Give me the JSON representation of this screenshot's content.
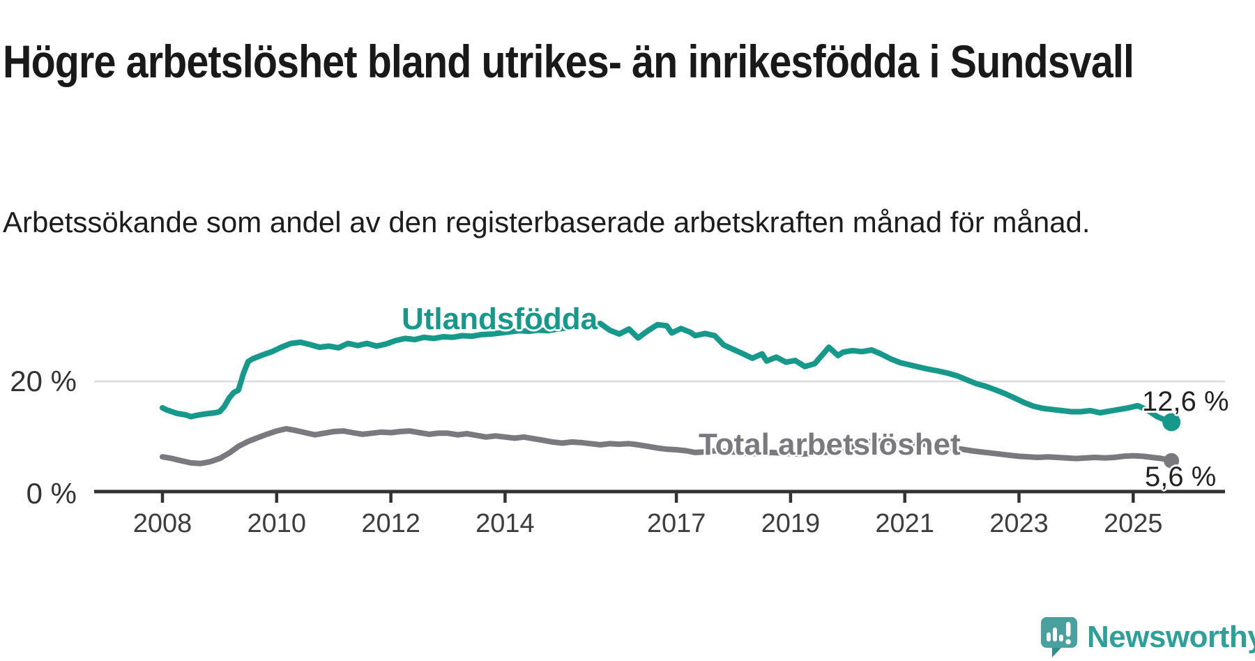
{
  "header": {
    "title": "Högre arbetslöshet bland utrikes- än inrikesfödda i Sundsvall",
    "subtitle": "Arbetssökande som andel av den registerbaserade arbetskraften månad för månad."
  },
  "chart_data": {
    "type": "line",
    "title": "Högre arbetslöshet bland utrikes- än inrikesfödda i Sundsvall",
    "subtitle": "Arbetssökande som andel av den registerbaserade arbetskraften månad för månad.",
    "unit": "%",
    "grid": "horizontal-only",
    "x_range": [
      2008,
      2026.3
    ],
    "y_axis": {
      "range": [
        0,
        32
      ],
      "ticks": [
        {
          "value": 0,
          "label": "0 %"
        },
        {
          "value": 20,
          "label": "20 %"
        }
      ]
    },
    "x_axis": {
      "ticks": [
        {
          "year": 2008,
          "label": "2008"
        },
        {
          "year": 2010,
          "label": "2010"
        },
        {
          "year": 2012,
          "label": "2012"
        },
        {
          "year": 2014,
          "label": "2014"
        },
        {
          "year": 2017,
          "label": "2017"
        },
        {
          "year": 2019,
          "label": "2019"
        },
        {
          "year": 2021,
          "label": "2021"
        },
        {
          "year": 2023,
          "label": "2023"
        },
        {
          "year": 2025,
          "label": "2025"
        }
      ]
    },
    "series": [
      {
        "name": "Utlandsfödda",
        "color": "#16998b",
        "end_label": "12,6 %",
        "end_value": 12.6,
        "points": [
          [
            2008.0,
            15.2
          ],
          [
            2008.08,
            14.8
          ],
          [
            2008.25,
            14.2
          ],
          [
            2008.42,
            13.9
          ],
          [
            2008.5,
            13.6
          ],
          [
            2008.58,
            13.8
          ],
          [
            2008.75,
            14.1
          ],
          [
            2008.92,
            14.3
          ],
          [
            2009.0,
            14.5
          ],
          [
            2009.08,
            15.4
          ],
          [
            2009.17,
            17.0
          ],
          [
            2009.25,
            18.0
          ],
          [
            2009.33,
            18.4
          ],
          [
            2009.42,
            21.5
          ],
          [
            2009.5,
            23.6
          ],
          [
            2009.58,
            24.1
          ],
          [
            2009.75,
            24.8
          ],
          [
            2009.92,
            25.4
          ],
          [
            2010.08,
            26.2
          ],
          [
            2010.25,
            26.9
          ],
          [
            2010.42,
            27.1
          ],
          [
            2010.58,
            26.7
          ],
          [
            2010.75,
            26.2
          ],
          [
            2010.92,
            26.4
          ],
          [
            2011.08,
            26.1
          ],
          [
            2011.25,
            26.9
          ],
          [
            2011.42,
            26.5
          ],
          [
            2011.58,
            26.9
          ],
          [
            2011.75,
            26.4
          ],
          [
            2011.92,
            26.8
          ],
          [
            2012.08,
            27.4
          ],
          [
            2012.25,
            27.8
          ],
          [
            2012.42,
            27.6
          ],
          [
            2012.58,
            28.0
          ],
          [
            2012.75,
            27.8
          ],
          [
            2012.92,
            28.1
          ],
          [
            2013.08,
            28.0
          ],
          [
            2013.25,
            28.3
          ],
          [
            2013.42,
            28.2
          ],
          [
            2013.58,
            28.5
          ],
          [
            2013.75,
            28.6
          ],
          [
            2013.92,
            28.8
          ],
          [
            2014.08,
            29.0
          ],
          [
            2014.25,
            29.2
          ],
          [
            2014.42,
            29.1
          ],
          [
            2014.58,
            29.3
          ],
          [
            2014.75,
            29.2
          ],
          [
            2014.92,
            29.5
          ],
          [
            2015.08,
            29.7
          ],
          [
            2015.25,
            29.9
          ],
          [
            2015.42,
            30.1
          ],
          [
            2015.58,
            30.3
          ],
          [
            2015.67,
            30.5
          ],
          [
            2015.83,
            29.3
          ],
          [
            2016.0,
            28.6
          ],
          [
            2016.17,
            29.5
          ],
          [
            2016.33,
            27.9
          ],
          [
            2016.5,
            29.2
          ],
          [
            2016.67,
            30.3
          ],
          [
            2016.83,
            30.1
          ],
          [
            2016.92,
            28.8
          ],
          [
            2017.08,
            29.6
          ],
          [
            2017.25,
            28.9
          ],
          [
            2017.33,
            28.3
          ],
          [
            2017.5,
            28.7
          ],
          [
            2017.67,
            28.3
          ],
          [
            2017.83,
            26.6
          ],
          [
            2018.0,
            25.8
          ],
          [
            2018.17,
            25.0
          ],
          [
            2018.33,
            24.2
          ],
          [
            2018.5,
            25.0
          ],
          [
            2018.58,
            23.7
          ],
          [
            2018.75,
            24.4
          ],
          [
            2018.92,
            23.5
          ],
          [
            2019.08,
            23.8
          ],
          [
            2019.25,
            22.7
          ],
          [
            2019.42,
            23.2
          ],
          [
            2019.58,
            25.1
          ],
          [
            2019.67,
            26.2
          ],
          [
            2019.83,
            24.7
          ],
          [
            2019.92,
            25.3
          ],
          [
            2020.08,
            25.6
          ],
          [
            2020.25,
            25.4
          ],
          [
            2020.42,
            25.7
          ],
          [
            2020.58,
            25.0
          ],
          [
            2020.75,
            24.1
          ],
          [
            2020.92,
            23.4
          ],
          [
            2021.08,
            23.0
          ],
          [
            2021.25,
            22.6
          ],
          [
            2021.42,
            22.2
          ],
          [
            2021.58,
            21.9
          ],
          [
            2021.75,
            21.5
          ],
          [
            2021.92,
            21.0
          ],
          [
            2022.08,
            20.3
          ],
          [
            2022.25,
            19.6
          ],
          [
            2022.42,
            19.1
          ],
          [
            2022.58,
            18.5
          ],
          [
            2022.75,
            17.8
          ],
          [
            2022.92,
            17.0
          ],
          [
            2023.08,
            16.2
          ],
          [
            2023.25,
            15.5
          ],
          [
            2023.42,
            15.1
          ],
          [
            2023.58,
            14.9
          ],
          [
            2023.75,
            14.7
          ],
          [
            2023.92,
            14.5
          ],
          [
            2024.08,
            14.5
          ],
          [
            2024.25,
            14.7
          ],
          [
            2024.42,
            14.3
          ],
          [
            2024.58,
            14.6
          ],
          [
            2024.75,
            14.9
          ],
          [
            2024.92,
            15.2
          ],
          [
            2025.08,
            15.6
          ],
          [
            2025.25,
            14.8
          ],
          [
            2025.42,
            13.6
          ],
          [
            2025.58,
            12.9
          ],
          [
            2025.67,
            12.6
          ]
        ]
      },
      {
        "name": "Total arbetslöshet",
        "color": "#7b7980",
        "end_label": "5,6 %",
        "end_value": 5.6,
        "points": [
          [
            2008.0,
            6.3
          ],
          [
            2008.17,
            6.0
          ],
          [
            2008.33,
            5.6
          ],
          [
            2008.5,
            5.2
          ],
          [
            2008.67,
            5.1
          ],
          [
            2008.83,
            5.4
          ],
          [
            2009.0,
            6.0
          ],
          [
            2009.17,
            7.0
          ],
          [
            2009.33,
            8.2
          ],
          [
            2009.5,
            9.1
          ],
          [
            2009.67,
            9.8
          ],
          [
            2009.83,
            10.4
          ],
          [
            2010.0,
            11.0
          ],
          [
            2010.17,
            11.4
          ],
          [
            2010.33,
            11.1
          ],
          [
            2010.5,
            10.7
          ],
          [
            2010.67,
            10.3
          ],
          [
            2010.83,
            10.6
          ],
          [
            2011.0,
            10.9
          ],
          [
            2011.17,
            11.0
          ],
          [
            2011.33,
            10.7
          ],
          [
            2011.5,
            10.4
          ],
          [
            2011.67,
            10.6
          ],
          [
            2011.83,
            10.8
          ],
          [
            2012.0,
            10.7
          ],
          [
            2012.17,
            10.9
          ],
          [
            2012.33,
            11.0
          ],
          [
            2012.5,
            10.7
          ],
          [
            2012.67,
            10.4
          ],
          [
            2012.83,
            10.6
          ],
          [
            2013.0,
            10.6
          ],
          [
            2013.17,
            10.3
          ],
          [
            2013.33,
            10.5
          ],
          [
            2013.5,
            10.2
          ],
          [
            2013.67,
            9.9
          ],
          [
            2013.83,
            10.1
          ],
          [
            2014.0,
            9.9
          ],
          [
            2014.17,
            9.7
          ],
          [
            2014.33,
            9.9
          ],
          [
            2014.5,
            9.6
          ],
          [
            2014.67,
            9.3
          ],
          [
            2014.83,
            9.0
          ],
          [
            2015.0,
            8.8
          ],
          [
            2015.17,
            9.0
          ],
          [
            2015.33,
            8.9
          ],
          [
            2015.5,
            8.7
          ],
          [
            2015.67,
            8.5
          ],
          [
            2015.83,
            8.7
          ],
          [
            2016.0,
            8.6
          ],
          [
            2016.17,
            8.7
          ],
          [
            2016.33,
            8.5
          ],
          [
            2016.5,
            8.2
          ],
          [
            2016.67,
            7.9
          ],
          [
            2016.83,
            7.7
          ],
          [
            2017.0,
            7.6
          ],
          [
            2017.17,
            7.4
          ],
          [
            2017.33,
            7.1
          ],
          [
            2017.5,
            7.2
          ],
          [
            2017.67,
            7.4
          ],
          [
            2017.83,
            7.3
          ],
          [
            2018.0,
            7.2
          ],
          [
            2018.17,
            7.0
          ],
          [
            2018.33,
            6.9
          ],
          [
            2018.5,
            7.0
          ],
          [
            2018.67,
            7.1
          ],
          [
            2018.83,
            7.0
          ],
          [
            2019.0,
            6.9
          ],
          [
            2019.17,
            6.8
          ],
          [
            2019.33,
            6.9
          ],
          [
            2019.5,
            7.0
          ],
          [
            2019.67,
            7.2
          ],
          [
            2019.83,
            7.4
          ],
          [
            2020.0,
            7.8
          ],
          [
            2020.17,
            8.5
          ],
          [
            2020.33,
            9.0
          ],
          [
            2020.5,
            9.2
          ],
          [
            2020.67,
            9.0
          ],
          [
            2020.83,
            8.8
          ],
          [
            2021.0,
            8.7
          ],
          [
            2021.17,
            8.8
          ],
          [
            2021.33,
            8.6
          ],
          [
            2021.5,
            8.4
          ],
          [
            2021.67,
            8.2
          ],
          [
            2021.83,
            7.9
          ],
          [
            2022.0,
            7.7
          ],
          [
            2022.17,
            7.4
          ],
          [
            2022.33,
            7.2
          ],
          [
            2022.5,
            7.0
          ],
          [
            2022.67,
            6.8
          ],
          [
            2022.83,
            6.6
          ],
          [
            2023.0,
            6.4
          ],
          [
            2023.17,
            6.3
          ],
          [
            2023.33,
            6.2
          ],
          [
            2023.5,
            6.3
          ],
          [
            2023.67,
            6.2
          ],
          [
            2023.83,
            6.1
          ],
          [
            2024.0,
            6.0
          ],
          [
            2024.17,
            6.1
          ],
          [
            2024.33,
            6.2
          ],
          [
            2024.5,
            6.1
          ],
          [
            2024.67,
            6.2
          ],
          [
            2024.83,
            6.4
          ],
          [
            2025.0,
            6.5
          ],
          [
            2025.17,
            6.4
          ],
          [
            2025.33,
            6.2
          ],
          [
            2025.5,
            6.0
          ],
          [
            2025.67,
            5.6
          ]
        ]
      }
    ],
    "colors": {
      "gridline": "#dbdbdb",
      "axis": "#323232",
      "tick_label": "#3d3d3d"
    },
    "legend_position": "inline-labels-on-lines"
  },
  "branding": {
    "name": "Newsworthy",
    "icon": "newsworthy-speech-bubble-chart-icon",
    "icon_color": "#48a19f",
    "icon_accent_color": "#2f8d8b",
    "text_color": "#2da099"
  }
}
